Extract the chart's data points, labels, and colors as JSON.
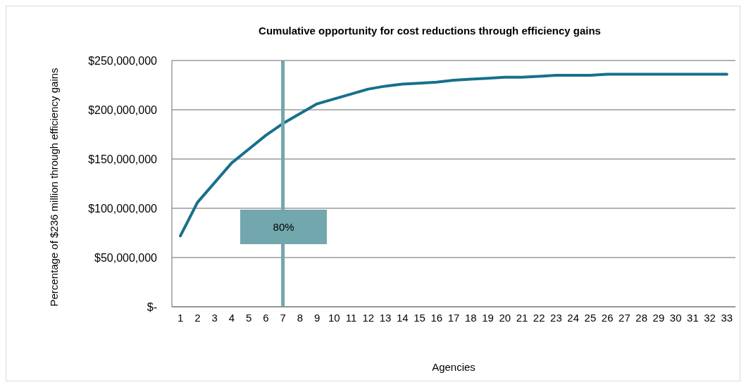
{
  "chart_data": {
    "type": "line",
    "title": "Cumulative opportunity for cost reductions through efficiency gains",
    "xlabel": "Agencies",
    "ylabel": "Percentage of $236 million through efficiency gains",
    "x": [
      1,
      2,
      3,
      4,
      5,
      6,
      7,
      8,
      9,
      10,
      11,
      12,
      13,
      14,
      15,
      16,
      17,
      18,
      19,
      20,
      21,
      22,
      23,
      24,
      25,
      26,
      27,
      28,
      29,
      30,
      31,
      32,
      33
    ],
    "series": [
      {
        "color": "#17708b",
        "values": [
          72000000,
          106000000,
          126000000,
          146000000,
          160000000,
          174000000,
          186000000,
          196000000,
          206000000,
          211000000,
          216000000,
          221000000,
          224000000,
          226000000,
          227000000,
          228000000,
          230000000,
          231000000,
          232000000,
          233000000,
          233000000,
          234000000,
          235000000,
          235000000,
          235000000,
          236000000,
          236000000,
          236000000,
          236000000,
          236000000,
          236000000,
          236000000,
          236000000
        ]
      }
    ],
    "xlim": [
      0.5,
      33.5
    ],
    "xticks": [
      1,
      2,
      3,
      4,
      5,
      6,
      7,
      8,
      9,
      10,
      11,
      12,
      13,
      14,
      15,
      16,
      17,
      18,
      19,
      20,
      21,
      22,
      23,
      24,
      25,
      26,
      27,
      28,
      29,
      30,
      31,
      32,
      33
    ],
    "ylim": [
      0,
      250000000
    ],
    "yticks": [
      {
        "value": 0,
        "label": "$-"
      },
      {
        "value": 50000000,
        "label": "$50,000,000"
      },
      {
        "value": 100000000,
        "label": "$100,000,000"
      },
      {
        "value": 150000000,
        "label": "$150,000,000"
      },
      {
        "value": 200000000,
        "label": "$200,000,000"
      },
      {
        "value": 250000000,
        "label": "$250,000,000"
      }
    ],
    "grid": "y",
    "ref_lines": [
      {
        "axis": "x",
        "value": 7,
        "color": "#72a7ad"
      }
    ],
    "annotations": [
      {
        "text": "80%",
        "x": 7
      }
    ]
  }
}
